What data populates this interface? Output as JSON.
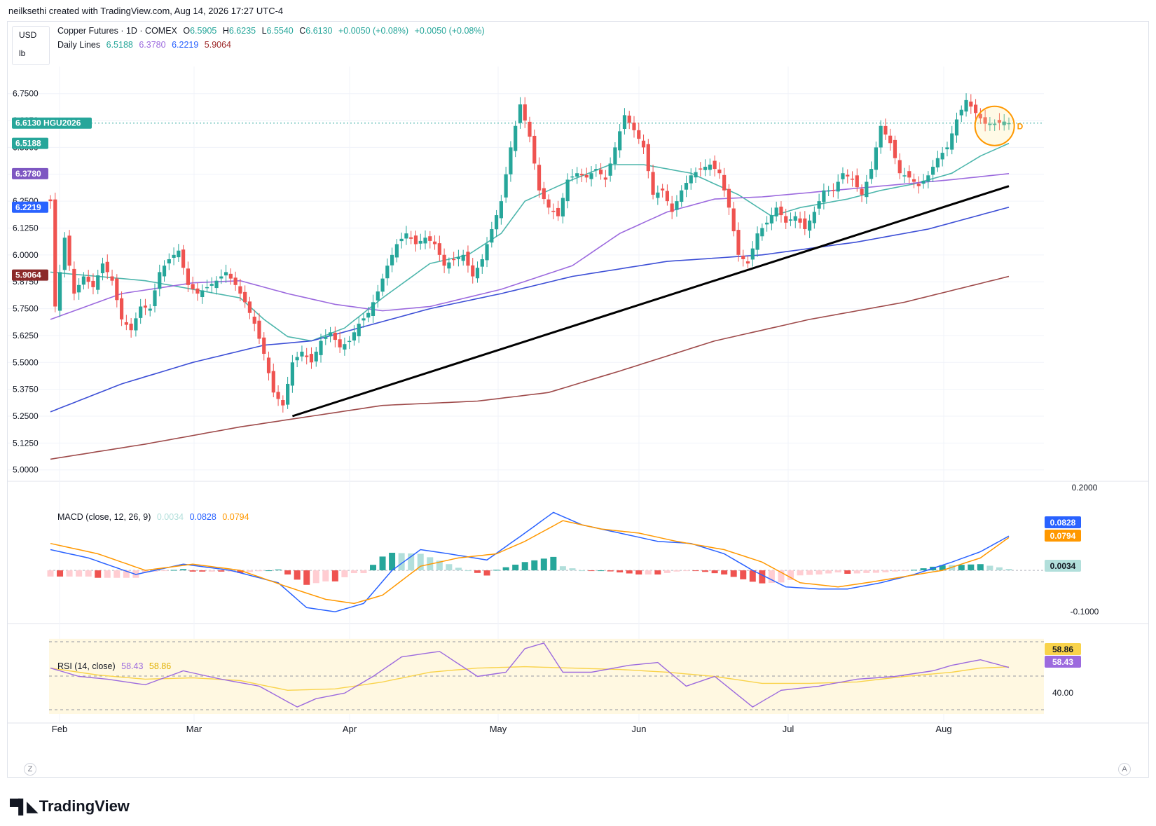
{
  "header": {
    "text": "neilksethi created with TradingView.com, Aug 14, 2026 17:27 UTC-4"
  },
  "unit": {
    "currency": "USD",
    "unit": "lb"
  },
  "legend_main": {
    "title": "Copper Futures · 1D · COMEX",
    "o_label": "O",
    "o": "6.5905",
    "h_label": "H",
    "h": "6.6235",
    "l_label": "L",
    "l": "6.5540",
    "c_label": "C",
    "c": "6.6130",
    "chg1": "+0.0050 (+0.08%)",
    "chg2": "+0.0050 (+0.08%)"
  },
  "legend_lines": {
    "title": "Daily Lines",
    "v1": "6.5188",
    "v2": "6.3780",
    "v3": "6.2219",
    "v4": "5.9064"
  },
  "legend_macd": {
    "title": "MACD (close, 12, 26, 9)",
    "hist": "0.0034",
    "macd": "0.0828",
    "signal": "0.0794"
  },
  "legend_rsi": {
    "title": "RSI (14, close)",
    "rsi": "58.43",
    "ma": "58.86"
  },
  "colors": {
    "up": "#26a69a",
    "down": "#ef5350",
    "ma20": "#4db6ac",
    "ma50": "#9c6ade",
    "ma100": "#3d4fd6",
    "ma200": "#9e4a4a",
    "macd": "#2962ff",
    "signal": "#ff9800",
    "rsi": "#9c6ade",
    "rsi_ma": "#f9d34b"
  },
  "footer": {
    "brand": "TradingView"
  },
  "corners": {
    "left": "Z",
    "right": "A"
  },
  "chart_data": {
    "type": "candlestick",
    "symbol": "HGU2026",
    "x_axis": {
      "labels": [
        "Feb",
        "Mar",
        "Apr",
        "May",
        "Jun",
        "Jul",
        "Aug"
      ]
    },
    "price_axis": {
      "ticks": [
        "6.7500",
        "6.6250",
        "6.5000",
        "6.3750",
        "6.2500",
        "6.1250",
        "6.0000",
        "5.8750",
        "5.7500",
        "5.6250",
        "5.5000",
        "5.3750",
        "5.2500",
        "5.1250",
        "5.0000"
      ],
      "range": [
        4.96,
        6.85
      ]
    },
    "price_badges": [
      {
        "value": "6.6130",
        "label": "HGU2026",
        "color": "#26a69a"
      },
      {
        "value": "6.5188",
        "color": "#26a69a"
      },
      {
        "value": "6.3780",
        "color": "#7e57c2"
      },
      {
        "value": "6.2219",
        "color": "#2962ff"
      },
      {
        "value": "5.9064",
        "color": "#8b2a2a"
      }
    ],
    "close_anchors": [
      [
        0,
        6.25
      ],
      [
        1,
        5.76
      ],
      [
        3,
        6.08
      ],
      [
        5,
        5.82
      ],
      [
        7,
        5.9
      ],
      [
        9,
        5.85
      ],
      [
        11,
        5.96
      ],
      [
        13,
        5.88
      ],
      [
        15,
        5.7
      ],
      [
        17,
        5.65
      ],
      [
        19,
        5.76
      ],
      [
        21,
        5.75
      ],
      [
        23,
        5.92
      ],
      [
        25,
        5.98
      ],
      [
        27,
        6.02
      ],
      [
        29,
        5.86
      ],
      [
        31,
        5.82
      ],
      [
        33,
        5.85
      ],
      [
        35,
        5.88
      ],
      [
        37,
        5.92
      ],
      [
        39,
        5.86
      ],
      [
        41,
        5.78
      ],
      [
        43,
        5.68
      ],
      [
        45,
        5.54
      ],
      [
        47,
        5.36
      ],
      [
        49,
        5.3
      ],
      [
        51,
        5.5
      ],
      [
        53,
        5.55
      ],
      [
        55,
        5.5
      ],
      [
        57,
        5.6
      ],
      [
        59,
        5.64
      ],
      [
        61,
        5.57
      ],
      [
        63,
        5.6
      ],
      [
        65,
        5.68
      ],
      [
        67,
        5.73
      ],
      [
        69,
        5.83
      ],
      [
        71,
        5.95
      ],
      [
        73,
        6.05
      ],
      [
        75,
        6.1
      ],
      [
        77,
        6.05
      ],
      [
        79,
        6.08
      ],
      [
        81,
        6.05
      ],
      [
        83,
        5.95
      ],
      [
        85,
        5.98
      ],
      [
        87,
        6.0
      ],
      [
        89,
        5.9
      ],
      [
        91,
        5.98
      ],
      [
        93,
        6.12
      ],
      [
        95,
        6.25
      ],
      [
        97,
        6.5
      ],
      [
        99,
        6.7
      ],
      [
        101,
        6.55
      ],
      [
        103,
        6.3
      ],
      [
        105,
        6.22
      ],
      [
        107,
        6.18
      ],
      [
        109,
        6.35
      ],
      [
        111,
        6.38
      ],
      [
        113,
        6.36
      ],
      [
        115,
        6.4
      ],
      [
        117,
        6.35
      ],
      [
        119,
        6.5
      ],
      [
        121,
        6.65
      ],
      [
        123,
        6.58
      ],
      [
        125,
        6.5
      ],
      [
        127,
        6.28
      ],
      [
        129,
        6.3
      ],
      [
        131,
        6.2
      ],
      [
        133,
        6.3
      ],
      [
        135,
        6.37
      ],
      [
        137,
        6.4
      ],
      [
        139,
        6.42
      ],
      [
        141,
        6.38
      ],
      [
        143,
        6.22
      ],
      [
        145,
        6.0
      ],
      [
        147,
        5.96
      ],
      [
        149,
        6.1
      ],
      [
        151,
        6.15
      ],
      [
        153,
        6.22
      ],
      [
        155,
        6.15
      ],
      [
        157,
        6.18
      ],
      [
        159,
        6.12
      ],
      [
        161,
        6.2
      ],
      [
        163,
        6.3
      ],
      [
        165,
        6.3
      ],
      [
        167,
        6.38
      ],
      [
        169,
        6.35
      ],
      [
        171,
        6.28
      ],
      [
        173,
        6.4
      ],
      [
        175,
        6.6
      ],
      [
        177,
        6.52
      ],
      [
        179,
        6.38
      ],
      [
        181,
        6.36
      ],
      [
        183,
        6.32
      ],
      [
        185,
        6.37
      ],
      [
        187,
        6.45
      ],
      [
        189,
        6.5
      ],
      [
        191,
        6.63
      ],
      [
        193,
        6.72
      ],
      [
        195,
        6.66
      ],
      [
        197,
        6.61
      ],
      [
        199,
        6.61
      ],
      [
        201,
        6.62
      ],
      [
        202,
        6.613
      ]
    ],
    "moving_averages": {
      "ma20": [
        [
          0,
          5.92
        ],
        [
          20,
          5.88
        ],
        [
          40,
          5.8
        ],
        [
          45,
          5.7
        ],
        [
          50,
          5.62
        ],
        [
          55,
          5.6
        ],
        [
          62,
          5.66
        ],
        [
          70,
          5.8
        ],
        [
          80,
          5.96
        ],
        [
          88,
          6.0
        ],
        [
          95,
          6.1
        ],
        [
          100,
          6.25
        ],
        [
          110,
          6.35
        ],
        [
          118,
          6.42
        ],
        [
          125,
          6.42
        ],
        [
          135,
          6.38
        ],
        [
          145,
          6.28
        ],
        [
          152,
          6.18
        ],
        [
          158,
          6.22
        ],
        [
          168,
          6.26
        ],
        [
          175,
          6.3
        ],
        [
          182,
          6.33
        ],
        [
          190,
          6.38
        ],
        [
          196,
          6.46
        ],
        [
          202,
          6.5188
        ]
      ],
      "ma50": [
        [
          0,
          5.7
        ],
        [
          15,
          5.82
        ],
        [
          30,
          5.87
        ],
        [
          40,
          5.88
        ],
        [
          50,
          5.82
        ],
        [
          60,
          5.77
        ],
        [
          70,
          5.74
        ],
        [
          80,
          5.76
        ],
        [
          95,
          5.84
        ],
        [
          110,
          5.95
        ],
        [
          120,
          6.1
        ],
        [
          130,
          6.2
        ],
        [
          140,
          6.26
        ],
        [
          150,
          6.27
        ],
        [
          160,
          6.29
        ],
        [
          170,
          6.31
        ],
        [
          180,
          6.33
        ],
        [
          190,
          6.35
        ],
        [
          202,
          6.378
        ]
      ],
      "ma100": [
        [
          0,
          5.27
        ],
        [
          15,
          5.4
        ],
        [
          30,
          5.5
        ],
        [
          45,
          5.58
        ],
        [
          55,
          5.6
        ],
        [
          65,
          5.66
        ],
        [
          80,
          5.75
        ],
        [
          95,
          5.82
        ],
        [
          110,
          5.9
        ],
        [
          130,
          5.97
        ],
        [
          150,
          6.0
        ],
        [
          170,
          6.06
        ],
        [
          185,
          6.12
        ],
        [
          202,
          6.2219
        ]
      ],
      "ma200": [
        [
          0,
          5.05
        ],
        [
          20,
          5.12
        ],
        [
          40,
          5.2
        ],
        [
          55,
          5.25
        ],
        [
          70,
          5.3
        ],
        [
          90,
          5.32
        ],
        [
          105,
          5.36
        ],
        [
          120,
          5.46
        ],
        [
          140,
          5.6
        ],
        [
          160,
          5.7
        ],
        [
          180,
          5.78
        ],
        [
          202,
          5.9
        ]
      ]
    },
    "trendline": {
      "from": [
        51,
        5.25
      ],
      "to": [
        202,
        6.32
      ]
    },
    "macd_axis": {
      "ticks": [
        "0.2000",
        "-0.1000"
      ],
      "range": [
        -0.12,
        0.21
      ]
    },
    "macd": [
      [
        0,
        0.05
      ],
      [
        8,
        0.03
      ],
      [
        18,
        -0.01
      ],
      [
        28,
        0.015
      ],
      [
        38,
        0.0
      ],
      [
        48,
        -0.03
      ],
      [
        54,
        -0.09
      ],
      [
        60,
        -0.1
      ],
      [
        66,
        -0.08
      ],
      [
        72,
        0.0
      ],
      [
        78,
        0.05
      ],
      [
        84,
        0.04
      ],
      [
        92,
        0.025
      ],
      [
        100,
        0.09
      ],
      [
        106,
        0.14
      ],
      [
        112,
        0.11
      ],
      [
        120,
        0.09
      ],
      [
        128,
        0.07
      ],
      [
        135,
        0.065
      ],
      [
        142,
        0.04
      ],
      [
        148,
        0.0
      ],
      [
        155,
        -0.04
      ],
      [
        162,
        -0.045
      ],
      [
        168,
        -0.045
      ],
      [
        175,
        -0.03
      ],
      [
        182,
        -0.01
      ],
      [
        190,
        0.02
      ],
      [
        196,
        0.045
      ],
      [
        202,
        0.0828
      ]
    ],
    "signal": [
      [
        0,
        0.065
      ],
      [
        10,
        0.04
      ],
      [
        20,
        0.0
      ],
      [
        30,
        0.015
      ],
      [
        40,
        0.0
      ],
      [
        50,
        -0.04
      ],
      [
        58,
        -0.07
      ],
      [
        64,
        -0.08
      ],
      [
        70,
        -0.06
      ],
      [
        78,
        0.01
      ],
      [
        86,
        0.03
      ],
      [
        94,
        0.04
      ],
      [
        100,
        0.07
      ],
      [
        108,
        0.12
      ],
      [
        116,
        0.1
      ],
      [
        124,
        0.09
      ],
      [
        132,
        0.07
      ],
      [
        142,
        0.05
      ],
      [
        150,
        0.02
      ],
      [
        158,
        -0.03
      ],
      [
        166,
        -0.04
      ],
      [
        172,
        -0.03
      ],
      [
        180,
        -0.015
      ],
      [
        188,
        0.0
      ],
      [
        196,
        0.03
      ],
      [
        202,
        0.0794
      ]
    ],
    "rsi_axis": {
      "ticks": [
        "58.86",
        "58.43",
        "40.00"
      ],
      "range": [
        22,
        85
      ],
      "bands": [
        30,
        70
      ]
    },
    "rsi": [
      [
        0,
        58
      ],
      [
        6,
        52
      ],
      [
        12,
        50
      ],
      [
        20,
        46
      ],
      [
        28,
        56
      ],
      [
        36,
        50
      ],
      [
        44,
        45
      ],
      [
        52,
        30
      ],
      [
        56,
        36
      ],
      [
        62,
        40
      ],
      [
        68,
        52
      ],
      [
        74,
        66
      ],
      [
        82,
        70
      ],
      [
        90,
        52
      ],
      [
        96,
        55
      ],
      [
        100,
        72
      ],
      [
        104,
        76
      ],
      [
        108,
        55
      ],
      [
        114,
        55
      ],
      [
        122,
        60
      ],
      [
        128,
        62
      ],
      [
        134,
        45
      ],
      [
        140,
        52
      ],
      [
        148,
        30
      ],
      [
        154,
        42
      ],
      [
        162,
        45
      ],
      [
        170,
        50
      ],
      [
        178,
        52
      ],
      [
        186,
        56
      ],
      [
        190,
        60
      ],
      [
        196,
        64
      ],
      [
        202,
        58.43
      ]
    ],
    "rsi_ma": [
      [
        0,
        58
      ],
      [
        10,
        53
      ],
      [
        20,
        50
      ],
      [
        30,
        51
      ],
      [
        40,
        49
      ],
      [
        50,
        42
      ],
      [
        60,
        43
      ],
      [
        70,
        48
      ],
      [
        80,
        55
      ],
      [
        90,
        58
      ],
      [
        100,
        59
      ],
      [
        110,
        58
      ],
      [
        120,
        57
      ],
      [
        130,
        55
      ],
      [
        140,
        52
      ],
      [
        150,
        47
      ],
      [
        160,
        47
      ],
      [
        170,
        48
      ],
      [
        180,
        52
      ],
      [
        190,
        55
      ],
      [
        196,
        58
      ],
      [
        202,
        58.86
      ]
    ]
  }
}
